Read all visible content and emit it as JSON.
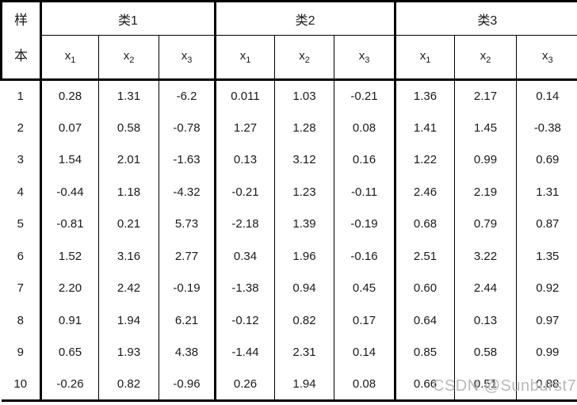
{
  "chart_data": {
    "type": "table",
    "row_header_label_top": "样",
    "row_header_label_bottom": "本",
    "groups": [
      {
        "label": "类1"
      },
      {
        "label": "类2"
      },
      {
        "label": "类3"
      }
    ],
    "subcolumns": [
      {
        "base": "x",
        "sub": "1"
      },
      {
        "base": "x",
        "sub": "2"
      },
      {
        "base": "x",
        "sub": "3"
      }
    ],
    "rows": [
      {
        "sample": "1",
        "values": [
          "0.28",
          "1.31",
          "-6.2",
          "0.011",
          "1.03",
          "-0.21",
          "1.36",
          "2.17",
          "0.14"
        ]
      },
      {
        "sample": "2",
        "values": [
          "0.07",
          "0.58",
          "-0.78",
          "1.27",
          "1.28",
          "0.08",
          "1.41",
          "1.45",
          "-0.38"
        ]
      },
      {
        "sample": "3",
        "values": [
          "1.54",
          "2.01",
          "-1.63",
          "0.13",
          "3.12",
          "0.16",
          "1.22",
          "0.99",
          "0.69"
        ]
      },
      {
        "sample": "4",
        "values": [
          "-0.44",
          "1.18",
          "-4.32",
          "-0.21",
          "1.23",
          "-0.11",
          "2.46",
          "2.19",
          "1.31"
        ]
      },
      {
        "sample": "5",
        "values": [
          "-0.81",
          "0.21",
          "5.73",
          "-2.18",
          "1.39",
          "-0.19",
          "0.68",
          "0.79",
          "0.87"
        ]
      },
      {
        "sample": "6",
        "values": [
          "1.52",
          "3.16",
          "2.77",
          "0.34",
          "1.96",
          "-0.16",
          "2.51",
          "3.22",
          "1.35"
        ]
      },
      {
        "sample": "7",
        "values": [
          "2.20",
          "2.42",
          "-0.19",
          "-1.38",
          "0.94",
          "0.45",
          "0.60",
          "2.44",
          "0.92"
        ]
      },
      {
        "sample": "8",
        "values": [
          "0.91",
          "1.94",
          "6.21",
          "-0.12",
          "0.82",
          "0.17",
          "0.64",
          "0.13",
          "0.97"
        ]
      },
      {
        "sample": "9",
        "values": [
          "0.65",
          "1.93",
          "4.38",
          "-1.44",
          "2.31",
          "0.14",
          "0.85",
          "0.58",
          "0.99"
        ]
      },
      {
        "sample": "10",
        "values": [
          "-0.26",
          "0.82",
          "-0.96",
          "0.26",
          "1.94",
          "0.08",
          "0.66",
          "0.51",
          "0.88"
        ]
      }
    ]
  },
  "watermark": {
    "text": "CSDN @Sunburst7"
  },
  "colors": {
    "text": "#1a1a1a",
    "border": "#000000",
    "background": "#ffffff",
    "watermark": "#b9b9b9"
  }
}
